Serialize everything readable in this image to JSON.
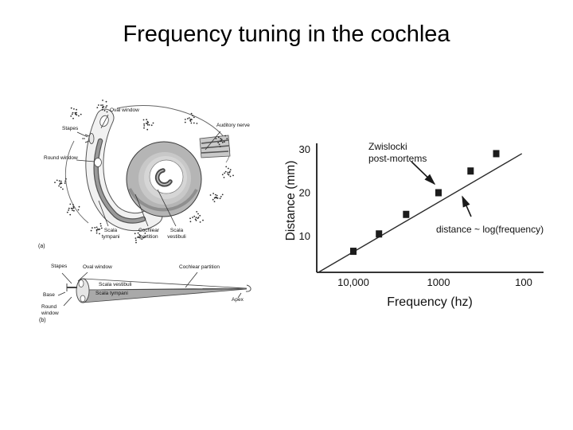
{
  "slide": {
    "title": "Frequency tuning in the cochlea"
  },
  "cochlea_diagram": {
    "caption_a": "(a)",
    "caption_b": "(b)",
    "labels_a": {
      "oval_window": "Oval window",
      "stapes": "Stapes",
      "round_window": "Round window",
      "auditory_nerve": "Auditory nerve",
      "scala_tympani": "Scala\ntympani",
      "cochlear_partition": "Cochlear\npartition",
      "scala_vestibuli": "Scala\nvestibuli"
    },
    "labels_b": {
      "stapes": "Stapes",
      "oval_window": "Oval window",
      "scala_vestibuli": "Scala vestibuli",
      "scala_tympani": "Scala tympani",
      "base": "Base",
      "round_window": "Round\nwindow",
      "cochlear_partition": "Cochlear partition",
      "apex": "Apex"
    }
  },
  "chart_data": {
    "type": "scatter",
    "title": "",
    "xlabel": "Frequency (hz)",
    "ylabel": "Distance (mm)",
    "x_scale": "log10_reversed",
    "x_ticks": [
      {
        "value": 10000,
        "label": "10,000"
      },
      {
        "value": 1000,
        "label": "1000"
      },
      {
        "value": 100,
        "label": "100"
      }
    ],
    "y_ticks": [
      {
        "value": 10,
        "label": "10"
      },
      {
        "value": 20,
        "label": "20"
      },
      {
        "value": 30,
        "label": "30"
      }
    ],
    "xlim_logf": [
      4.45,
      1.75
    ],
    "ylim_mm": [
      0,
      33
    ],
    "grid": false,
    "points": [
      {
        "frequency_hz": 10000,
        "distance_mm": 6.5
      },
      {
        "frequency_hz": 5000,
        "distance_mm": 10.5
      },
      {
        "frequency_hz": 2400,
        "distance_mm": 15
      },
      {
        "frequency_hz": 1000,
        "distance_mm": 20
      },
      {
        "frequency_hz": 420,
        "distance_mm": 25
      },
      {
        "frequency_hz": 210,
        "distance_mm": 29
      }
    ],
    "trend_line": {
      "from": {
        "frequency_hz": 26000,
        "distance_mm": 1.6
      },
      "to": {
        "frequency_hz": 105,
        "distance_mm": 29
      }
    },
    "annotations": [
      {
        "id": "zwislocki",
        "text": "Zwislocki\npost-mortems"
      },
      {
        "id": "logfit",
        "text": "distance ~ log(frequency)"
      }
    ],
    "marker": {
      "shape": "square",
      "color": "#1c1c1c",
      "size": 8
    },
    "line_color": "#2a2a2a",
    "axis_color": "#1a1a1a"
  }
}
